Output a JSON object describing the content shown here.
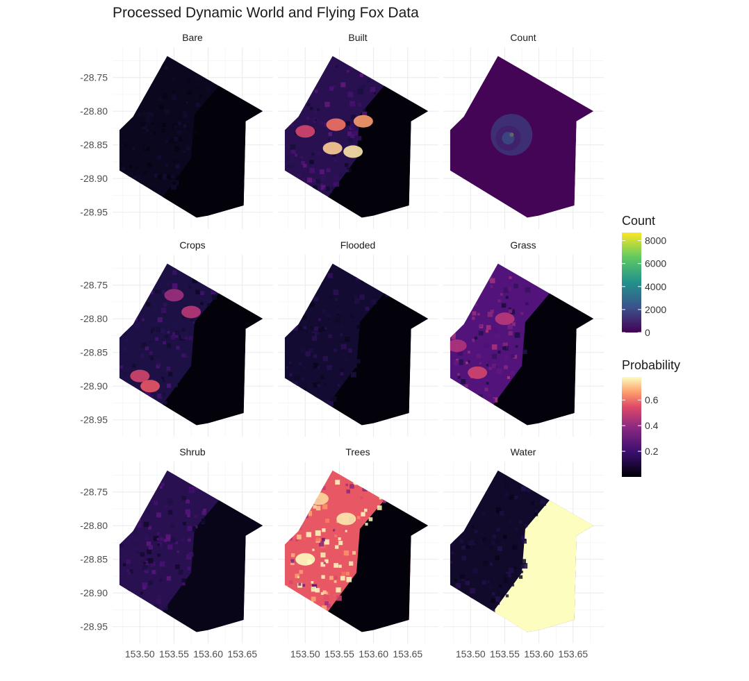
{
  "chart_data": {
    "type": "heatmap",
    "title": "Processed Dynamic World and Flying Fox Data",
    "facets": [
      "Bare",
      "Built",
      "Count",
      "Crops",
      "Flooded",
      "Grass",
      "Shrub",
      "Trees",
      "Water"
    ],
    "x_ticks": [
      153.5,
      153.55,
      153.6,
      153.65
    ],
    "x_tick_labels": [
      "153.50",
      "153.55",
      "153.60",
      "153.65"
    ],
    "y_ticks": [
      -28.75,
      -28.8,
      -28.85,
      -28.9,
      -28.95
    ],
    "y_tick_labels": [
      "-28.75",
      "-28.80",
      "-28.85",
      "-28.90",
      "-28.95"
    ],
    "xlim": [
      153.46,
      153.695
    ],
    "ylim": [
      -28.975,
      -28.705
    ],
    "grid": true,
    "region_outline": [
      [
        153.54,
        -28.718
      ],
      [
        153.68,
        -28.8
      ],
      [
        153.655,
        -28.815
      ],
      [
        153.652,
        -28.94
      ],
      [
        153.6,
        -28.955
      ],
      [
        153.583,
        -28.958
      ],
      [
        153.47,
        -28.888
      ],
      [
        153.47,
        -28.828
      ],
      [
        153.49,
        -28.808
      ]
    ],
    "coast_line": [
      [
        153.62,
        -28.757
      ],
      [
        153.58,
        -28.805
      ],
      [
        153.575,
        -28.87
      ],
      [
        153.53,
        -28.932
      ]
    ],
    "facet_values": {
      "Bare": {
        "land": 0.04,
        "sea": 0.01,
        "hotspots": []
      },
      "Built": {
        "land": 0.12,
        "sea": 0.01,
        "hotspots": [
          {
            "lon": 153.57,
            "lat": -28.86,
            "v": 0.74
          },
          {
            "lon": 153.54,
            "lat": -28.855,
            "v": 0.7
          },
          {
            "lon": 153.585,
            "lat": -28.815,
            "v": 0.62
          },
          {
            "lon": 153.545,
            "lat": -28.82,
            "v": 0.55
          },
          {
            "lon": 153.5,
            "lat": -28.83,
            "v": 0.45
          }
        ]
      },
      "Count": {
        "land": 120,
        "sea": 120,
        "hotspots": [
          {
            "lon": 153.56,
            "lat": -28.835,
            "v": 8500
          },
          {
            "lon": 153.555,
            "lat": -28.84,
            "v": 2500
          }
        ]
      },
      "Crops": {
        "land": 0.1,
        "sea": 0.01,
        "hotspots": [
          {
            "lon": 153.5,
            "lat": -28.885,
            "v": 0.45
          },
          {
            "lon": 153.515,
            "lat": -28.9,
            "v": 0.5
          },
          {
            "lon": 153.55,
            "lat": -28.765,
            "v": 0.35
          },
          {
            "lon": 153.575,
            "lat": -28.79,
            "v": 0.4
          }
        ]
      },
      "Flooded": {
        "land": 0.07,
        "sea": 0.01,
        "hotspots": []
      },
      "Grass": {
        "land": 0.2,
        "sea": 0.01,
        "hotspots": [
          {
            "lon": 153.51,
            "lat": -28.88,
            "v": 0.45
          },
          {
            "lon": 153.55,
            "lat": -28.8,
            "v": 0.4
          },
          {
            "lon": 153.48,
            "lat": -28.84,
            "v": 0.38
          }
        ]
      },
      "Shrub": {
        "land": 0.12,
        "sea": 0.03,
        "hotspots": []
      },
      "Trees": {
        "land": 0.5,
        "sea": 0.01,
        "hotspots": [
          {
            "lon": 153.5,
            "lat": -28.85,
            "v": 0.78
          },
          {
            "lon": 153.56,
            "lat": -28.79,
            "v": 0.75
          },
          {
            "lon": 153.52,
            "lat": -28.76,
            "v": 0.72
          }
        ]
      },
      "Water": {
        "land": 0.06,
        "sea": 0.78,
        "hotspots": []
      }
    },
    "legends": [
      {
        "title": "Count",
        "palette": "viridis",
        "range": [
          0,
          8700
        ],
        "ticks": [
          0,
          2000,
          4000,
          6000,
          8000
        ]
      },
      {
        "title": "Probability",
        "palette": "magma",
        "range": [
          0,
          0.78
        ],
        "ticks": [
          0.2,
          0.4,
          0.6
        ]
      }
    ]
  }
}
